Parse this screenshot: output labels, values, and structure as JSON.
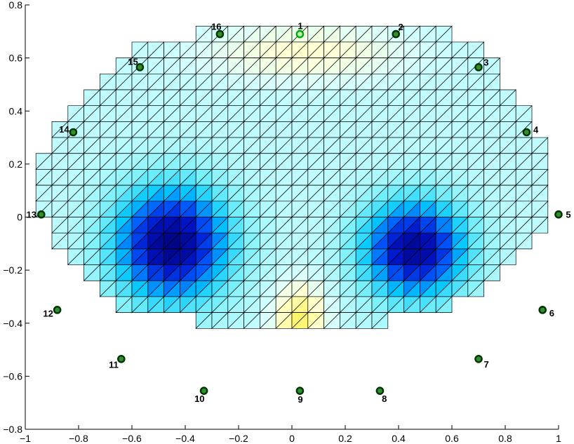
{
  "chart_data": {
    "type": "heatmap",
    "title": "",
    "xlabel": "",
    "ylabel": "",
    "xlim": [
      -1,
      1
    ],
    "ylim": [
      -0.8,
      0.8
    ],
    "grid": false,
    "colormap": "jet",
    "x_ticks": [
      "−1",
      "−0.8",
      "−0.6",
      "−0.4",
      "−0.2",
      "0",
      "0.2",
      "0.4",
      "0.6",
      "0.8",
      "1"
    ],
    "y_ticks": [
      "−0.8",
      "−0.6",
      "−0.4",
      "−0.2",
      "0",
      "0.2",
      "0.4",
      "0.6",
      "0.8"
    ],
    "x_tick_values": [
      -1,
      -0.8,
      -0.6,
      -0.4,
      -0.2,
      0,
      0.2,
      0.4,
      0.6,
      0.8,
      1
    ],
    "y_tick_values": [
      -0.8,
      -0.6,
      -0.4,
      -0.2,
      0,
      0.2,
      0.4,
      0.6,
      0.8
    ],
    "mesh": {
      "cell_size": 0.06,
      "x_start": -0.96,
      "y_top": 0.72,
      "rows": [
        {
          "x0": -0.36,
          "x1": 0.6
        },
        {
          "x0": -0.6,
          "x1": 0.72
        },
        {
          "x0": -0.66,
          "x1": 0.78
        },
        {
          "x0": -0.72,
          "x1": 0.78
        },
        {
          "x0": -0.78,
          "x1": 0.84
        },
        {
          "x0": -0.84,
          "x1": 0.9
        },
        {
          "x0": -0.9,
          "x1": 0.9
        },
        {
          "x0": -0.9,
          "x1": 0.96
        },
        {
          "x0": -0.96,
          "x1": 0.96
        },
        {
          "x0": -0.96,
          "x1": 0.96
        },
        {
          "x0": -0.96,
          "x1": 0.96
        },
        {
          "x0": -0.96,
          "x1": 0.96
        },
        {
          "x0": -0.9,
          "x1": 0.96
        },
        {
          "x0": -0.9,
          "x1": 0.9
        },
        {
          "x0": -0.84,
          "x1": 0.84
        },
        {
          "x0": -0.78,
          "x1": 0.78
        },
        {
          "x0": -0.72,
          "x1": 0.72
        },
        {
          "x0": -0.66,
          "x1": 0.6
        },
        {
          "x0": -0.36,
          "x1": 0.36
        }
      ]
    },
    "field": {
      "baseline": 0.12,
      "blobs": [
        {
          "x": -0.45,
          "y": -0.1,
          "sx": 0.2,
          "sy": 0.2,
          "amp": -1.0
        },
        {
          "x": 0.46,
          "y": -0.12,
          "sx": 0.18,
          "sy": 0.17,
          "amp": -0.95
        },
        {
          "x": 0.03,
          "y": -0.38,
          "sx": 0.09,
          "sy": 0.12,
          "amp": 0.42
        },
        {
          "x": 0.05,
          "y": 0.62,
          "sx": 0.35,
          "sy": 0.1,
          "amp": 0.22
        }
      ]
    },
    "electrodes": [
      {
        "id": "1",
        "x": 0.03,
        "y": 0.69,
        "highlight": true
      },
      {
        "id": "2",
        "x": 0.39,
        "y": 0.69
      },
      {
        "id": "3",
        "x": 0.7,
        "y": 0.565
      },
      {
        "id": "4",
        "x": 0.88,
        "y": 0.32
      },
      {
        "id": "5",
        "x": 1.0,
        "y": 0.01
      },
      {
        "id": "6",
        "x": 0.94,
        "y": -0.35
      },
      {
        "id": "7",
        "x": 0.7,
        "y": -0.535
      },
      {
        "id": "8",
        "x": 0.33,
        "y": -0.655
      },
      {
        "id": "9",
        "x": 0.03,
        "y": -0.655
      },
      {
        "id": "10",
        "x": -0.33,
        "y": -0.655
      },
      {
        "id": "11",
        "x": -0.64,
        "y": -0.535
      },
      {
        "id": "12",
        "x": -0.88,
        "y": -0.35
      },
      {
        "id": "13",
        "x": -0.94,
        "y": 0.01
      },
      {
        "id": "14",
        "x": -0.82,
        "y": 0.32
      },
      {
        "id": "15",
        "x": -0.57,
        "y": 0.565
      },
      {
        "id": "16",
        "x": -0.27,
        "y": 0.69
      }
    ],
    "colors": {
      "electrode_ring": "#003300",
      "electrode_ring_highlight": "#00aa00",
      "electrode_fill": "#2f8f2f",
      "mesh_stroke": "#000000"
    }
  }
}
